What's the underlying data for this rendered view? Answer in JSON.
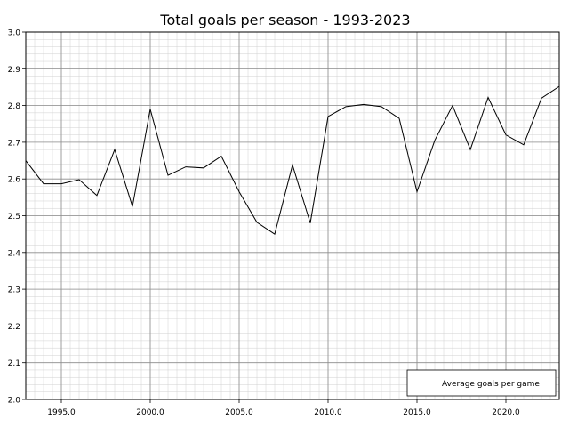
{
  "chart_data": {
    "type": "line",
    "title": "Total goals per season - 1993-2023",
    "xlabel": "",
    "ylabel": "",
    "xlim": [
      1993,
      2023
    ],
    "ylim": [
      2.0,
      3.0
    ],
    "x_ticks": [
      "1995.0",
      "2000.0",
      "2005.0",
      "2010.0",
      "2015.0",
      "2020.0"
    ],
    "x_tick_values": [
      1995,
      2000,
      2005,
      2010,
      2015,
      2020
    ],
    "y_ticks": [
      "2.0",
      "2.1",
      "2.2",
      "2.3",
      "2.4",
      "2.5",
      "2.6",
      "2.7",
      "2.8",
      "2.9",
      "3.0"
    ],
    "y_tick_values": [
      2.0,
      2.1,
      2.2,
      2.3,
      2.4,
      2.5,
      2.6,
      2.7,
      2.8,
      2.9,
      3.0
    ],
    "grid": true,
    "minor_grid": true,
    "legend_position": "lower-right",
    "series": [
      {
        "name": "Average goals per game",
        "color": "#000000",
        "x": [
          1993,
          1994,
          1995,
          1996,
          1997,
          1998,
          1999,
          2000,
          2001,
          2002,
          2003,
          2004,
          2005,
          2006,
          2007,
          2008,
          2009,
          2010,
          2011,
          2012,
          2013,
          2014,
          2015,
          2016,
          2017,
          2018,
          2019,
          2020,
          2021,
          2022,
          2023
        ],
        "y": [
          2.65,
          2.587,
          2.587,
          2.598,
          2.555,
          2.68,
          2.525,
          2.79,
          2.61,
          2.633,
          2.63,
          2.662,
          2.565,
          2.482,
          2.45,
          2.638,
          2.48,
          2.77,
          2.797,
          2.803,
          2.797,
          2.765,
          2.565,
          2.705,
          2.8,
          2.68,
          2.822,
          2.72,
          2.693,
          2.82,
          2.852
        ]
      }
    ]
  }
}
